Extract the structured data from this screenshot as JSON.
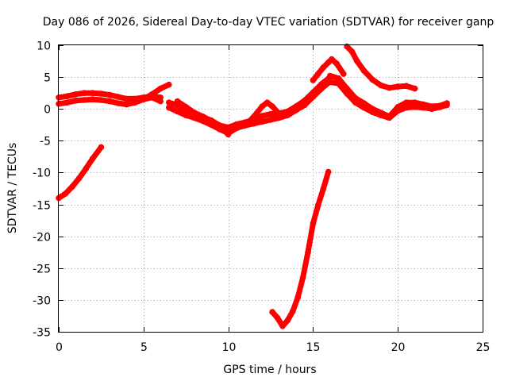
{
  "chart_data": {
    "type": "scatter",
    "title": "Day 086 of 2026, Sidereal Day-to-day VTEC variation (SDTVAR) for receiver ganp",
    "xlabel": "GPS time / hours",
    "ylabel": "SDTVAR / TECUs",
    "xlim": [
      0,
      25
    ],
    "ylim": [
      -35,
      10
    ],
    "xticks": [
      0,
      5,
      10,
      15,
      20,
      25
    ],
    "yticks": [
      -35,
      -30,
      -25,
      -20,
      -15,
      -10,
      -5,
      0,
      5,
      10
    ],
    "grid": true,
    "legend": "none",
    "marker_color": "#ff0000",
    "series": [
      {
        "name": "arc-early-main-upper",
        "x": [
          0,
          0.5,
          1,
          1.5,
          2,
          2.5,
          3,
          3.5,
          4,
          4.5,
          5,
          5.5,
          6
        ],
        "y": [
          1.8,
          2.0,
          2.3,
          2.5,
          2.5,
          2.4,
          2.2,
          1.9,
          1.6,
          1.6,
          1.8,
          2.0,
          1.8
        ]
      },
      {
        "name": "arc-early-main-lower",
        "x": [
          0,
          0.5,
          1,
          1.5,
          2,
          2.5,
          3,
          3.5,
          4,
          4.5,
          5,
          5.5,
          6
        ],
        "y": [
          0.8,
          1.0,
          1.3,
          1.4,
          1.5,
          1.4,
          1.2,
          0.9,
          0.7,
          1.0,
          1.5,
          1.8,
          1.2
        ]
      },
      {
        "name": "arc-bump-6h",
        "x": [
          5.0,
          5.5,
          6.0,
          6.5
        ],
        "y": [
          1.5,
          2.3,
          3.2,
          3.8
        ]
      },
      {
        "name": "arc-midday-upper",
        "x": [
          6.5,
          7,
          7.5,
          8,
          8.5,
          9,
          9.5,
          10,
          10.5,
          11,
          11.5,
          12,
          12.5,
          13,
          13.5,
          14,
          14.5,
          15,
          15.5,
          16
        ],
        "y": [
          1.0,
          0.6,
          -0.3,
          -0.9,
          -1.3,
          -1.8,
          -2.6,
          -2.9,
          -2.4,
          -2.1,
          -1.7,
          -1.1,
          -0.8,
          -0.7,
          -0.4,
          0.4,
          1.3,
          2.6,
          3.9,
          5.0
        ]
      },
      {
        "name": "arc-midday-lower",
        "x": [
          6.5,
          7,
          7.5,
          8,
          8.5,
          9,
          9.5,
          10,
          10.5,
          11,
          11.5,
          12,
          12.5,
          13,
          13.5,
          14,
          14.5,
          15,
          15.5,
          16
        ],
        "y": [
          0.2,
          -0.4,
          -1.0,
          -1.4,
          -1.9,
          -2.5,
          -3.2,
          -3.8,
          -3.0,
          -2.6,
          -2.3,
          -2.0,
          -1.7,
          -1.4,
          -1.0,
          -0.2,
          0.6,
          1.9,
          3.2,
          4.3
        ]
      },
      {
        "name": "arc-12h-hump",
        "x": [
          11.3,
          11.7,
          12.0,
          12.3,
          12.6,
          12.9
        ],
        "y": [
          -1.8,
          -0.6,
          0.4,
          1.0,
          0.4,
          -0.5
        ]
      },
      {
        "name": "arc-descending-7h",
        "x": [
          7.0,
          7.5,
          8.0,
          8.5,
          9.0,
          9.5,
          10.0
        ],
        "y": [
          1.2,
          0.3,
          -0.6,
          -1.2,
          -1.9,
          -2.8,
          -4.0
        ]
      },
      {
        "name": "arc-peak-main",
        "x": [
          16,
          16.5,
          17,
          17.5,
          18,
          18.5,
          19,
          19.5,
          20,
          20.5,
          21,
          21.5,
          22,
          22.5,
          22.9
        ],
        "y": [
          5.2,
          4.8,
          3.2,
          1.7,
          0.9,
          0.0,
          -0.6,
          -1.2,
          0.3,
          1.0,
          1.0,
          0.7,
          0.4,
          0.5,
          0.9
        ]
      },
      {
        "name": "arc-peak-lower",
        "x": [
          16,
          16.5,
          17,
          17.5,
          18,
          18.5,
          19,
          19.5,
          20,
          20.5,
          21,
          21.5,
          22,
          22.5,
          22.9
        ],
        "y": [
          4.2,
          4.0,
          2.4,
          1.0,
          0.2,
          -0.5,
          -1.0,
          -1.4,
          -0.3,
          0.2,
          0.3,
          0.2,
          0.0,
          0.3,
          0.6
        ]
      },
      {
        "name": "arc-rise-to-peak",
        "x": [
          15.0,
          15.3,
          15.6,
          15.9,
          16.1,
          16.4,
          16.8
        ],
        "y": [
          4.5,
          5.5,
          6.5,
          7.3,
          7.8,
          7.1,
          5.5
        ]
      },
      {
        "name": "arc-late-hump",
        "x": [
          17.0,
          17.3,
          17.6,
          18.0,
          18.5,
          19.0,
          19.5,
          20.0,
          20.5,
          21.0
        ],
        "y": [
          9.8,
          9.0,
          7.5,
          6.0,
          4.6,
          3.7,
          3.3,
          3.5,
          3.6,
          3.2
        ]
      },
      {
        "name": "arc-early-negative",
        "x": [
          0.0,
          0.4,
          0.8,
          1.2,
          1.6,
          2.0,
          2.5
        ],
        "y": [
          -14.0,
          -13.3,
          -12.2,
          -10.9,
          -9.4,
          -7.8,
          -6.0
        ]
      },
      {
        "name": "arc-deep-dip",
        "x": [
          12.6,
          12.9,
          13.2,
          13.5,
          13.8,
          14.1,
          14.4,
          14.7,
          15.0,
          15.3,
          15.6,
          15.9
        ],
        "y": [
          -31.9,
          -32.8,
          -34.1,
          -33.2,
          -31.8,
          -29.6,
          -26.5,
          -22.5,
          -18.0,
          -15.1,
          -12.6,
          -9.9
        ]
      }
    ]
  }
}
